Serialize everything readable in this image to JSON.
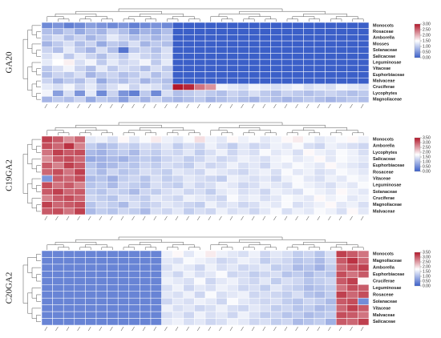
{
  "chart_data": [
    {
      "type": "heatmap",
      "title": "GA20",
      "rows": [
        "Monocots",
        "Rosaceae",
        "Amborella",
        "Mosses",
        "Solanaceae",
        "Salicaceae",
        "Leguminosae",
        "Vitaceae",
        "Euphorbiaceae",
        "Malvaceae",
        "Cruciferae",
        "Lycophytes",
        "Magnoliaceae"
      ],
      "values": [
        [
          0.4,
          0.5,
          0.3,
          0.4,
          0.6,
          0.5,
          0.4,
          0.5,
          0.3,
          0.4,
          0.5,
          0.4,
          0,
          0,
          0,
          0,
          0,
          0,
          0,
          0,
          0,
          0,
          0,
          0,
          0,
          0,
          0,
          0,
          0,
          0
        ],
        [
          0.9,
          0.8,
          1.0,
          0.7,
          0.9,
          0.8,
          1.1,
          0.9,
          0.6,
          0.8,
          0.7,
          0.9,
          0,
          0,
          0,
          0,
          0,
          0,
          0,
          0,
          0,
          0,
          0,
          0,
          0,
          0,
          0,
          0,
          0,
          0
        ],
        [
          1.0,
          1.2,
          0.9,
          1.1,
          0.8,
          1.0,
          1.3,
          1.1,
          0.9,
          1.0,
          0.8,
          1.0,
          0,
          0,
          0,
          0,
          0,
          0,
          0,
          0,
          0,
          0,
          0,
          0,
          0,
          0,
          0,
          0,
          0,
          0
        ],
        [
          0.8,
          1.0,
          1.2,
          0.9,
          1.1,
          0.7,
          1.0,
          0.9,
          1.2,
          0.8,
          1.0,
          0.9,
          0,
          0,
          0,
          0,
          0,
          0,
          0,
          0,
          0,
          0,
          0,
          0,
          0,
          0,
          0,
          0,
          0,
          0
        ],
        [
          1.1,
          0.9,
          1.3,
          1.0,
          0.8,
          1.2,
          0.9,
          0.2,
          1.0,
          1.1,
          0.9,
          1.2,
          0,
          0,
          0,
          0,
          0,
          0,
          0,
          0,
          0,
          0,
          0,
          0,
          0,
          0,
          0,
          0,
          0,
          0
        ],
        [
          1.2,
          1.4,
          1.0,
          1.3,
          1.1,
          0.9,
          1.2,
          1.0,
          1.3,
          1.1,
          1.0,
          1.2,
          0,
          0,
          0,
          0,
          0,
          0,
          0,
          0,
          0,
          0,
          0,
          0,
          0,
          0,
          0,
          0,
          0,
          0
        ],
        [
          1.3,
          1.5,
          1.6,
          1.2,
          1.4,
          1.0,
          1.3,
          1.1,
          1.2,
          1.4,
          1.0,
          1.3,
          0,
          0,
          0,
          0,
          0,
          0,
          0,
          0,
          0,
          0,
          0,
          0,
          0,
          0,
          0,
          0,
          0,
          0
        ],
        [
          1.0,
          1.2,
          1.4,
          1.1,
          0.9,
          1.3,
          1.0,
          1.2,
          1.1,
          0.9,
          1.2,
          1.0,
          0,
          0,
          0,
          0,
          0,
          0,
          0,
          0,
          0,
          0,
          0,
          0,
          0,
          0,
          0,
          0,
          0,
          0
        ],
        [
          0.9,
          1.1,
          1.0,
          1.2,
          0.8,
          1.0,
          1.1,
          0.9,
          1.0,
          1.2,
          0.9,
          1.1,
          0,
          0,
          0,
          0,
          0,
          0,
          0,
          0,
          0,
          0,
          0,
          0,
          0,
          0,
          0,
          0,
          0,
          0
        ],
        [
          1.1,
          0.8,
          1.0,
          0.9,
          1.2,
          0.7,
          1.0,
          0.9,
          1.1,
          0.8,
          1.0,
          0.9,
          0,
          0,
          0,
          0,
          0,
          0,
          0,
          0,
          0,
          0,
          0,
          0,
          0,
          0,
          0,
          0,
          0,
          0
        ],
        [
          1.3,
          1.2,
          1.4,
          1.1,
          1.3,
          1.0,
          1.2,
          1.4,
          1.1,
          1.3,
          1.2,
          1.0,
          3.0,
          2.9,
          2.4,
          2.2,
          1.4,
          1.3,
          1.2,
          1.4,
          1.3,
          1.2,
          1.3,
          1.4,
          1.2,
          1.3,
          1.2,
          1.4,
          1.3,
          1.2
        ],
        [
          1.4,
          0.6,
          1.2,
          0.5,
          1.3,
          0.4,
          1.1,
          0.5,
          0.3,
          1.0,
          0.4,
          1.2,
          0.9,
          1.0,
          1.1,
          1.0,
          0.9,
          1.1,
          1.0,
          1.2,
          1.0,
          0.9,
          1.1,
          1.0,
          0.9,
          1.0,
          1.1,
          1.0,
          0.9,
          1.0
        ],
        [
          0.8,
          1.0,
          0.9,
          1.1,
          0.7,
          1.0,
          0.9,
          0.6,
          1.0,
          0.8,
          1.1,
          0.9,
          0.8,
          0.9,
          1.0,
          0.8,
          0.9,
          1.0,
          0.9,
          0.8,
          1.0,
          0.9,
          0.8,
          0.9,
          1.0,
          0.9,
          0.8,
          0.9,
          1.0,
          0.9
        ]
      ],
      "zlim": [
        0,
        3
      ],
      "zticks": [
        {
          "value": 0,
          "label": "0.00"
        },
        {
          "value": 0.5,
          "label": "0.50"
        },
        {
          "value": 1,
          "label": "1.00"
        },
        {
          "value": 1.5,
          "label": "1.50"
        },
        {
          "value": 2,
          "label": "2.00"
        },
        {
          "value": 2.5,
          "label": "2.50"
        },
        {
          "value": 3,
          "label": "3.00"
        }
      ]
    },
    {
      "type": "heatmap",
      "title": "C19GA2",
      "rows": [
        "Monocots",
        "Amborella",
        "Lycophytes",
        "Salicaceae",
        "Euphorbiaceae",
        "Rosaceae",
        "Vitaceae",
        "Leguminosae",
        "Solanaceae",
        "Cruciferae",
        "Magnoliaceae",
        "Malvaceae"
      ],
      "values": [
        [
          3.2,
          3.0,
          2.6,
          2.9,
          1.5,
          1.6,
          1.4,
          1.8,
          1.5,
          1.7,
          1.9,
          1.6,
          1.5,
          1.7,
          2.0,
          1.6,
          1.5,
          1.8,
          1.6,
          1.7,
          1.5,
          1.6,
          1.8,
          1.9,
          1.7,
          1.5,
          1.6,
          1.7,
          1.8,
          1.6
        ],
        [
          3.1,
          2.9,
          3.3,
          2.7,
          1.2,
          1.0,
          1.1,
          1.3,
          1.2,
          1.4,
          1.3,
          1.5,
          1.2,
          1.4,
          1.3,
          1.6,
          1.4,
          1.2,
          1.5,
          1.3,
          1.4,
          1.6,
          1.5,
          1.7,
          1.4,
          1.3,
          1.6,
          1.5,
          1.4,
          1.3
        ],
        [
          2.8,
          3.2,
          3.0,
          3.1,
          1.0,
          0.9,
          1.1,
          1.2,
          1.0,
          1.3,
          1.2,
          1.4,
          1.3,
          1.5,
          1.2,
          1.4,
          1.6,
          1.3,
          1.5,
          1.4,
          1.7,
          1.5,
          1.6,
          1.4,
          1.8,
          1.6,
          1.5,
          1.7,
          1.6,
          1.4
        ],
        [
          2.6,
          3.0,
          3.1,
          2.9,
          0.8,
          0.9,
          1.0,
          0.9,
          1.1,
          1.2,
          1.1,
          1.3,
          1.4,
          1.2,
          1.3,
          1.5,
          1.3,
          1.4,
          1.6,
          1.5,
          1.4,
          1.6,
          1.7,
          1.5,
          1.6,
          1.8,
          1.5,
          1.7,
          1.6,
          1.5
        ],
        [
          3.0,
          2.7,
          3.2,
          3.0,
          1.1,
          0.9,
          1.0,
          1.2,
          1.1,
          1.3,
          1.2,
          1.4,
          1.3,
          1.2,
          1.5,
          1.3,
          1.4,
          1.6,
          1.4,
          1.5,
          1.3,
          1.6,
          1.5,
          1.7,
          1.6,
          1.5,
          1.8,
          1.6,
          1.5,
          1.4
        ],
        [
          2.9,
          3.1,
          2.8,
          3.2,
          1.2,
          1.0,
          1.3,
          1.1,
          1.2,
          1.4,
          1.3,
          1.2,
          1.5,
          1.4,
          1.3,
          1.6,
          1.5,
          1.4,
          1.3,
          1.5,
          1.6,
          1.4,
          1.7,
          1.5,
          1.6,
          1.4,
          1.5,
          1.7,
          1.6,
          1.5
        ],
        [
          0.6,
          3.0,
          2.9,
          3.1,
          1.0,
          1.1,
          0.9,
          1.2,
          1.3,
          1.1,
          1.4,
          1.2,
          1.3,
          1.5,
          1.4,
          1.3,
          1.2,
          1.6,
          1.5,
          1.4,
          1.5,
          1.3,
          1.6,
          1.7,
          1.5,
          1.4,
          1.6,
          1.5,
          1.7,
          1.6
        ],
        [
          3.1,
          2.8,
          3.0,
          2.7,
          1.1,
          1.2,
          1.0,
          1.3,
          1.2,
          1.1,
          1.4,
          1.3,
          1.2,
          1.5,
          1.3,
          1.4,
          1.6,
          1.5,
          1.3,
          1.4,
          1.6,
          1.5,
          1.4,
          1.7,
          1.6,
          1.5,
          1.4,
          1.6,
          1.5,
          1.7
        ],
        [
          3.0,
          3.2,
          2.9,
          3.0,
          1.2,
          1.1,
          1.3,
          1.2,
          1.0,
          1.3,
          1.2,
          1.4,
          1.5,
          1.3,
          1.4,
          1.2,
          1.5,
          1.6,
          1.4,
          1.5,
          1.3,
          1.6,
          1.5,
          1.4,
          1.7,
          1.6,
          1.5,
          1.8,
          1.6,
          1.5
        ],
        [
          2.7,
          3.0,
          3.1,
          2.9,
          1.3,
          1.2,
          1.1,
          1.4,
          1.3,
          1.2,
          1.5,
          1.4,
          1.3,
          1.6,
          1.5,
          1.4,
          1.3,
          1.7,
          1.5,
          1.6,
          1.4,
          1.5,
          1.7,
          1.6,
          1.5,
          1.8,
          1.6,
          1.7,
          1.5,
          1.6
        ],
        [
          3.2,
          2.9,
          3.0,
          3.1,
          1.1,
          1.3,
          1.2,
          1.0,
          1.4,
          1.2,
          1.3,
          1.5,
          1.4,
          1.3,
          1.2,
          1.6,
          1.4,
          1.5,
          1.3,
          1.4,
          1.6,
          1.5,
          1.7,
          1.4,
          1.5,
          1.6,
          1.8,
          1.5,
          1.6,
          1.4
        ],
        [
          3.0,
          3.1,
          2.8,
          3.2,
          1.0,
          1.2,
          1.1,
          1.3,
          1.2,
          1.0,
          1.4,
          1.3,
          1.5,
          1.2,
          1.4,
          1.3,
          1.6,
          1.4,
          1.5,
          1.3,
          1.5,
          1.7,
          1.4,
          1.6,
          1.5,
          1.7,
          1.6,
          1.4,
          1.8,
          1.5
        ]
      ],
      "zlim": [
        0,
        3.5
      ],
      "zticks": [
        {
          "value": 0,
          "label": "0.00"
        },
        {
          "value": 0.5,
          "label": "0.50"
        },
        {
          "value": 1,
          "label": "1.00"
        },
        {
          "value": 1.5,
          "label": "1.50"
        },
        {
          "value": 2,
          "label": "2.00"
        },
        {
          "value": 2.5,
          "label": "2.50"
        },
        {
          "value": 3,
          "label": "3.00"
        },
        {
          "value": 3.5,
          "label": "3.50"
        }
      ]
    },
    {
      "type": "heatmap",
      "title": "C20GA2",
      "rows": [
        "Monocots",
        "Magnoliaceae",
        "Amborella",
        "Euphorbiaceae",
        "Cruciferae",
        "Leguminosae",
        "Rosaceae",
        "Solanaceae",
        "Vitaceae",
        "Malvaceae",
        "Salicaceae"
      ],
      "values": [
        [
          0.4,
          0.4,
          0.4,
          0.4,
          0.4,
          0.4,
          0.4,
          0.4,
          0.4,
          0.4,
          0.4,
          1.6,
          1.8,
          1.5,
          1.7,
          1.9,
          1.6,
          1.5,
          1.4,
          1.6,
          1.3,
          1.5,
          1.4,
          1.2,
          1.3,
          1.1,
          1.4,
          3.2,
          3.0,
          2.8
        ],
        [
          0.4,
          0.4,
          0.4,
          0.4,
          0.4,
          0.4,
          0.4,
          0.4,
          0.4,
          0.4,
          0.4,
          1.5,
          1.4,
          1.7,
          1.6,
          1.5,
          1.3,
          1.4,
          1.6,
          1.5,
          1.2,
          1.4,
          1.3,
          1.1,
          1.2,
          1.0,
          1.3,
          3.0,
          3.3,
          2.9
        ],
        [
          0.4,
          0.4,
          0.4,
          0.4,
          0.4,
          0.4,
          0.4,
          0.4,
          0.4,
          0.4,
          0.4,
          1.4,
          1.6,
          1.5,
          1.3,
          1.6,
          1.4,
          1.5,
          1.3,
          1.4,
          1.5,
          1.2,
          1.3,
          1.0,
          1.1,
          0.9,
          1.2,
          2.9,
          3.1,
          3.2
        ],
        [
          0.4,
          0.4,
          0.4,
          0.4,
          0.4,
          0.4,
          0.4,
          0.4,
          0.4,
          0.4,
          0.4,
          1.5,
          1.3,
          1.6,
          1.4,
          1.5,
          1.7,
          1.3,
          1.4,
          1.2,
          1.3,
          1.4,
          1.1,
          1.2,
          1.0,
          1.2,
          1.1,
          3.1,
          2.8,
          3.0
        ],
        [
          0.4,
          0.4,
          0.4,
          0.4,
          0.4,
          0.4,
          0.4,
          0.4,
          0.4,
          0.4,
          0.4,
          1.6,
          1.5,
          1.4,
          1.7,
          1.3,
          1.5,
          1.6,
          1.4,
          1.3,
          1.5,
          1.2,
          1.4,
          1.3,
          1.1,
          1.2,
          1.3,
          3.0,
          3.2,
          1.8
        ],
        [
          0.4,
          0.4,
          0.4,
          0.4,
          0.4,
          0.4,
          0.4,
          0.4,
          0.4,
          0.4,
          0.4,
          1.4,
          1.6,
          1.3,
          1.5,
          1.4,
          1.6,
          1.5,
          1.3,
          1.4,
          1.2,
          1.5,
          1.3,
          1.2,
          1.0,
          1.1,
          1.2,
          2.8,
          3.1,
          3.0
        ],
        [
          0.4,
          0.4,
          0.4,
          0.4,
          0.4,
          0.4,
          0.4,
          0.4,
          0.4,
          0.4,
          0.4,
          1.5,
          1.4,
          1.6,
          1.3,
          1.7,
          1.4,
          1.5,
          1.6,
          1.3,
          1.4,
          1.3,
          1.2,
          1.4,
          1.1,
          1.0,
          1.2,
          3.2,
          2.9,
          3.1
        ],
        [
          0.4,
          0.4,
          0.4,
          0.4,
          0.4,
          0.4,
          0.4,
          0.4,
          0.4,
          0.4,
          0.4,
          1.3,
          1.5,
          1.4,
          1.6,
          1.5,
          1.3,
          1.7,
          1.5,
          1.4,
          1.3,
          1.4,
          1.2,
          1.1,
          1.3,
          1.2,
          1.0,
          3.0,
          3.1,
          0.5
        ],
        [
          0.4,
          0.4,
          0.4,
          0.4,
          0.4,
          0.4,
          0.4,
          0.4,
          0.4,
          0.4,
          0.4,
          1.6,
          1.4,
          1.5,
          1.3,
          1.4,
          1.6,
          1.4,
          1.3,
          1.5,
          1.4,
          1.2,
          1.3,
          1.1,
          1.2,
          1.0,
          1.1,
          2.9,
          3.2,
          3.0
        ],
        [
          0.4,
          0.4,
          0.4,
          0.4,
          0.4,
          0.4,
          0.4,
          0.4,
          0.4,
          0.4,
          0.4,
          1.4,
          1.5,
          1.3,
          1.6,
          1.4,
          1.5,
          1.3,
          1.6,
          1.4,
          1.2,
          1.3,
          1.1,
          1.2,
          1.0,
          1.1,
          1.2,
          3.1,
          3.0,
          2.8
        ],
        [
          0.4,
          0.4,
          0.4,
          0.4,
          0.4,
          0.4,
          0.4,
          0.4,
          0.4,
          0.4,
          0.4,
          1.5,
          1.6,
          1.4,
          1.5,
          1.3,
          1.4,
          1.6,
          1.5,
          1.3,
          1.4,
          1.2,
          1.3,
          1.0,
          1.1,
          1.2,
          0.9,
          3.0,
          2.9,
          3.2
        ]
      ],
      "zlim": [
        0,
        3.5
      ],
      "zticks": [
        {
          "value": 0,
          "label": "0.00"
        },
        {
          "value": 0.5,
          "label": "0.50"
        },
        {
          "value": 1,
          "label": "1.00"
        },
        {
          "value": 1.5,
          "label": "1.50"
        },
        {
          "value": 2,
          "label": "2.00"
        },
        {
          "value": 2.5,
          "label": "2.50"
        },
        {
          "value": 3,
          "label": "3.00"
        },
        {
          "value": 3.5,
          "label": "3.50"
        }
      ]
    }
  ]
}
